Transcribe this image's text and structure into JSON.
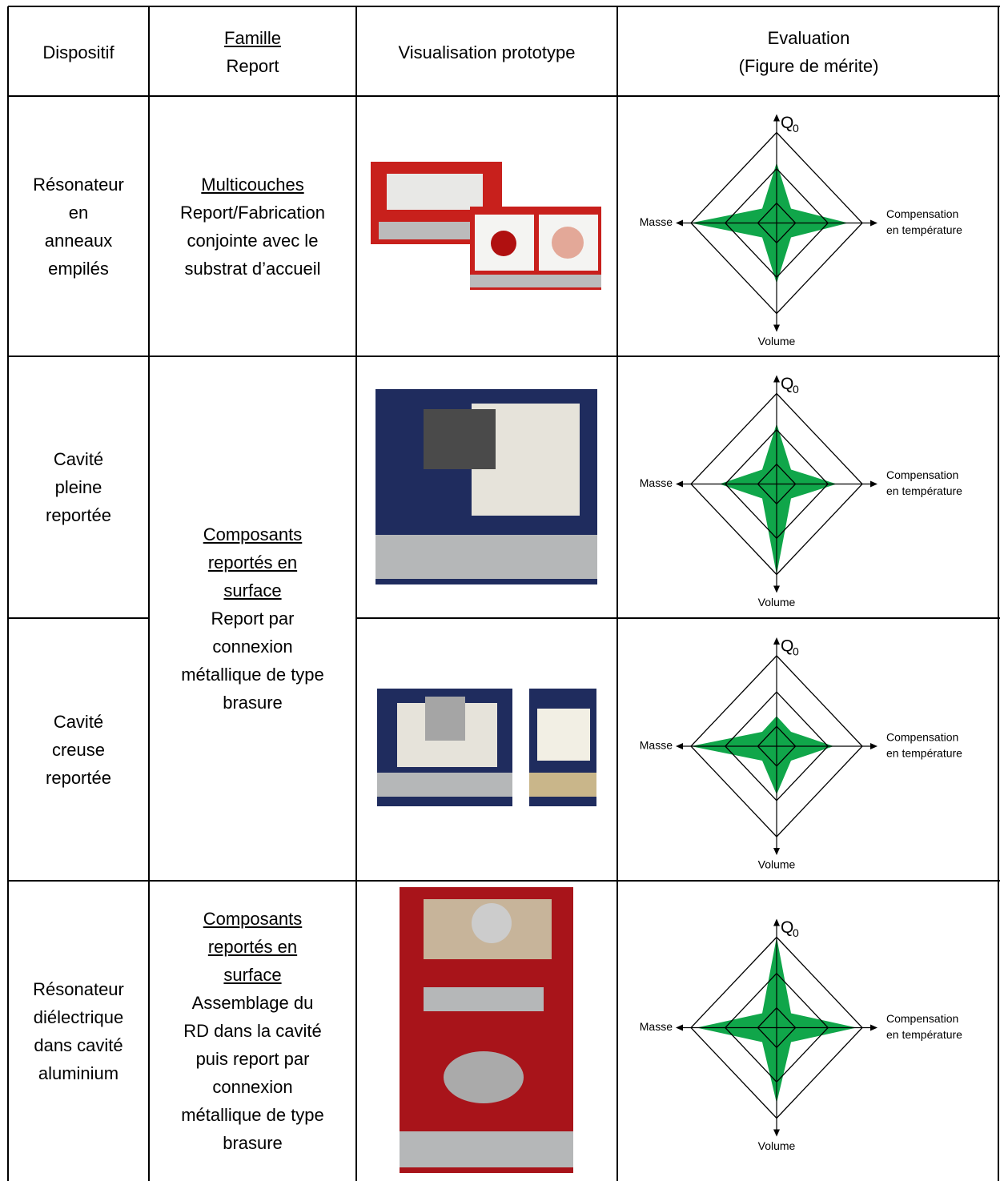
{
  "header": {
    "dispositif": "Dispositif",
    "famille": "Famille",
    "report": "Report",
    "visualisation": "Visualisation prototype",
    "evaluation": [
      "Evaluation",
      "(Figure de mérite)"
    ]
  },
  "radar_axes": {
    "top": "Q",
    "top_sub": "0",
    "right": [
      "Compensation",
      "en température"
    ],
    "bottom": "Volume",
    "left": "Masse"
  },
  "radar_scale": [
    0,
    3
  ],
  "rows": [
    {
      "dispositif": [
        "Résonateur",
        "en",
        "anneaux",
        "empilés"
      ],
      "radar": {
        "top": 2,
        "right": 2.5,
        "bottom": 2,
        "left": 3
      }
    },
    {
      "dispositif": [
        "Cavité",
        "pleine",
        "reportée"
      ],
      "radar": {
        "top": 2,
        "right": 2.1,
        "bottom": 3,
        "left": 2
      }
    },
    {
      "dispositif": [
        "Cavité",
        "creuse",
        "reportée"
      ],
      "radar": {
        "top": 1,
        "right": 2,
        "bottom": 1.6,
        "left": 3
      }
    },
    {
      "dispositif": [
        "Résonateur",
        "diélectrique",
        "dans cavité",
        "aluminium"
      ],
      "radar": {
        "top": 3,
        "right": 2.8,
        "bottom": 2.5,
        "left": 2.8
      }
    }
  ],
  "familles": [
    {
      "title": [
        "Multicouches"
      ],
      "desc": [
        "Report/Fabrication",
        "conjointe avec le",
        "substrat d’accueil"
      ]
    },
    {
      "title": [
        "Composants",
        "reportés en",
        "surface"
      ],
      "desc": [
        "Report par",
        "connexion",
        "métallique de type",
        "brasure"
      ]
    },
    {
      "title": [
        "Composants",
        "reportés en",
        "surface"
      ],
      "desc": [
        "Assemblage du",
        "RD dans la cavité",
        "puis report par",
        "connexion",
        "métallique de type",
        "brasure"
      ]
    }
  ]
}
